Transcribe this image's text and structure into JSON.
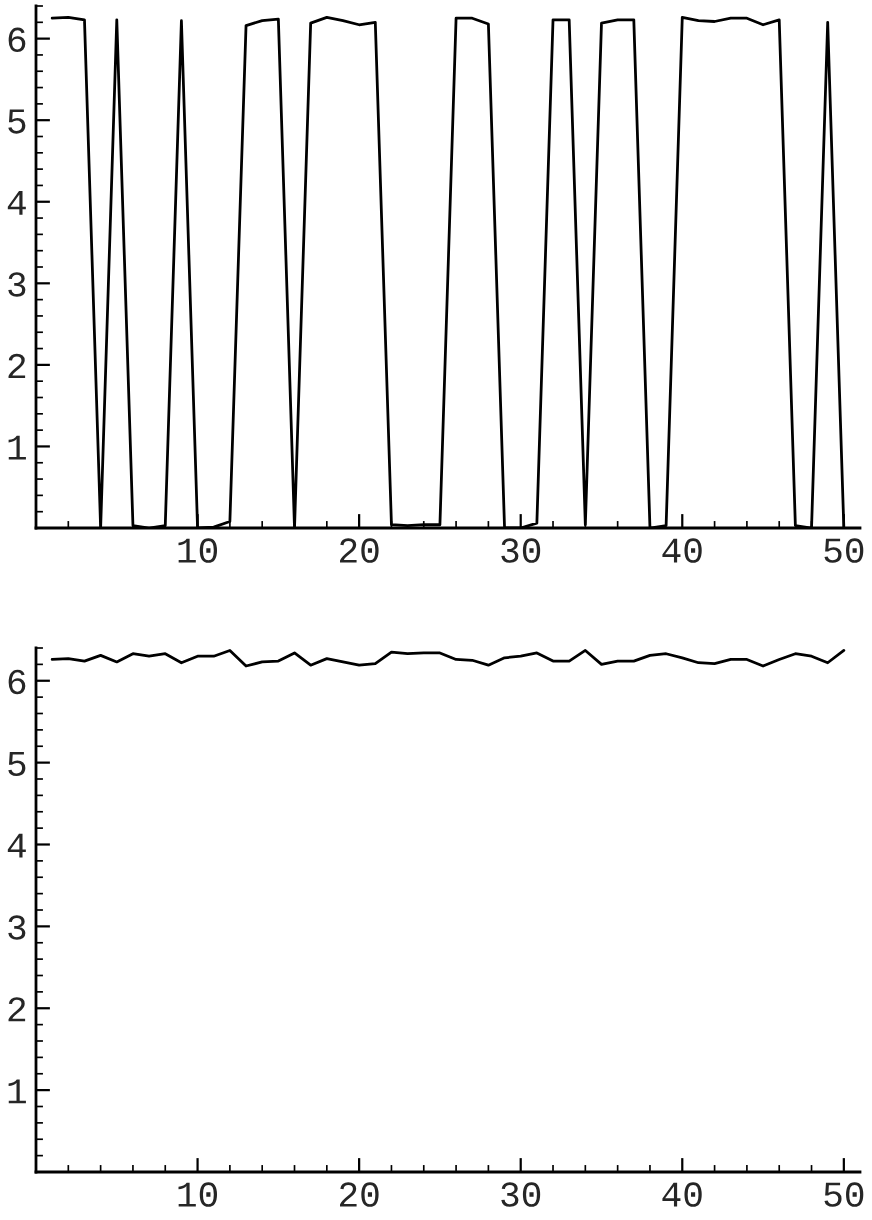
{
  "chart_data": [
    {
      "type": "line",
      "x": [
        1,
        2,
        3,
        4,
        5,
        6,
        7,
        8,
        9,
        10,
        11,
        12,
        13,
        14,
        15,
        16,
        17,
        18,
        19,
        20,
        21,
        22,
        23,
        24,
        25,
        26,
        27,
        28,
        29,
        30,
        31,
        32,
        33,
        34,
        35,
        36,
        37,
        38,
        39,
        40,
        41,
        42,
        43,
        44,
        45,
        46,
        47,
        48,
        49,
        50
      ],
      "values": [
        6.25,
        6.26,
        6.23,
        0.0,
        6.23,
        0.03,
        0.0,
        0.03,
        6.22,
        0.0,
        0.01,
        0.08,
        6.16,
        6.22,
        6.24,
        0.0,
        6.19,
        6.26,
        6.22,
        6.17,
        6.2,
        0.04,
        0.03,
        0.04,
        0.04,
        6.25,
        6.25,
        6.18,
        0.0,
        0.0,
        0.06,
        6.23,
        6.23,
        0.04,
        6.19,
        6.23,
        6.23,
        0.0,
        0.03,
        6.26,
        6.22,
        6.21,
        6.25,
        6.25,
        6.17,
        6.23,
        0.03,
        0.0,
        6.2,
        0.0
      ],
      "color": "#000000",
      "xlim": [
        0,
        51
      ],
      "xticks": [
        10,
        20,
        30,
        40,
        50
      ],
      "ylim": [
        0,
        6.4
      ],
      "yticks": [
        1,
        2,
        3,
        4,
        5,
        6
      ]
    },
    {
      "type": "line",
      "x": [
        1,
        2,
        3,
        4,
        5,
        6,
        7,
        8,
        9,
        10,
        11,
        12,
        13,
        14,
        15,
        16,
        17,
        18,
        19,
        20,
        21,
        22,
        23,
        24,
        25,
        26,
        27,
        28,
        29,
        30,
        31,
        32,
        33,
        34,
        35,
        36,
        37,
        38,
        39,
        40,
        41,
        42,
        43,
        44,
        45,
        46,
        47,
        48,
        49,
        50
      ],
      "values": [
        6.26,
        6.27,
        6.24,
        6.31,
        6.23,
        6.33,
        6.3,
        6.33,
        6.22,
        6.3,
        6.3,
        6.37,
        6.18,
        6.23,
        6.24,
        6.34,
        6.19,
        6.27,
        6.23,
        6.19,
        6.21,
        6.35,
        6.33,
        6.34,
        6.34,
        6.26,
        6.25,
        6.19,
        6.28,
        6.3,
        6.34,
        6.24,
        6.24,
        6.37,
        6.2,
        6.24,
        6.24,
        6.31,
        6.33,
        6.28,
        6.22,
        6.21,
        6.26,
        6.26,
        6.18,
        6.26,
        6.33,
        6.3,
        6.22,
        6.37
      ],
      "color": "#000000",
      "xlim": [
        0,
        51
      ],
      "xticks": [
        10,
        20,
        30,
        40,
        50
      ],
      "ylim": [
        0,
        6.4
      ],
      "yticks": [
        1,
        2,
        3,
        4,
        5,
        6
      ]
    }
  ]
}
